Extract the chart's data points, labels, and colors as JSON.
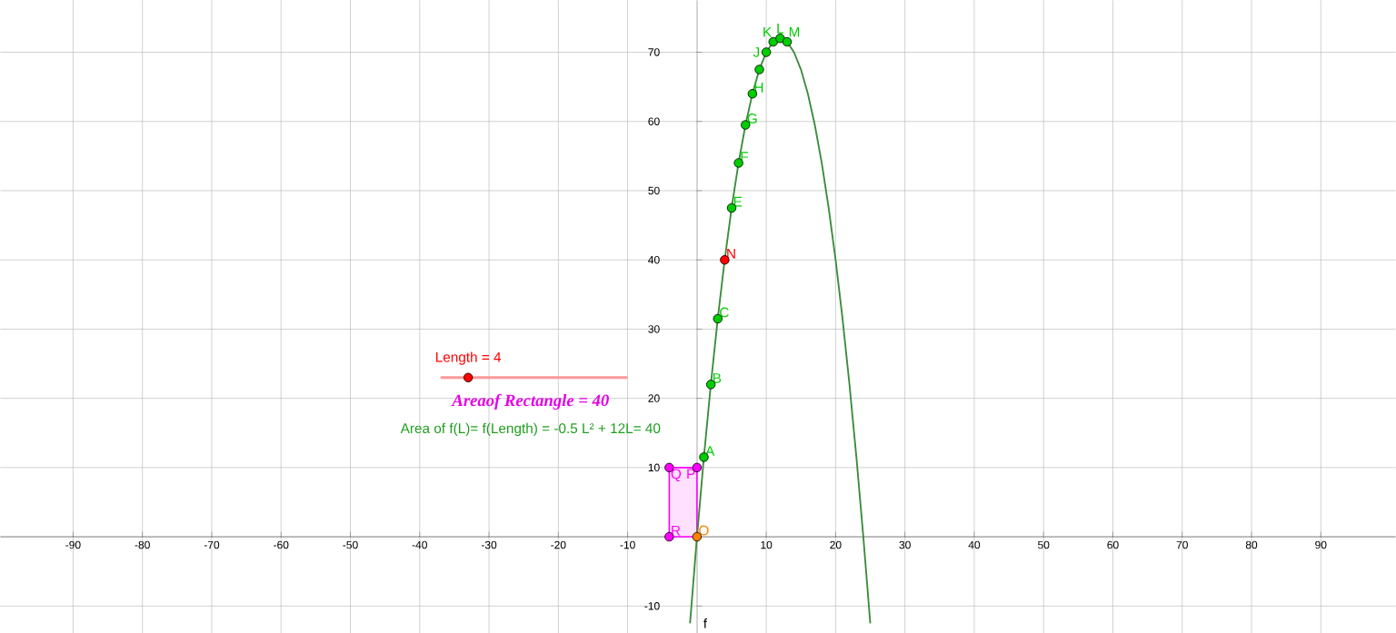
{
  "chart_data": {
    "type": "line",
    "xlim": [
      -100.5,
      100.8
    ],
    "ylim": [
      -13.9,
      77.5
    ],
    "xticks": [
      -90,
      -80,
      -70,
      -60,
      -50,
      -40,
      -30,
      -20,
      -10,
      10,
      20,
      30,
      40,
      50,
      60,
      70,
      80,
      90
    ],
    "yticks": [
      -10,
      10,
      20,
      30,
      40,
      50,
      60,
      70
    ],
    "grid": true,
    "series": [
      {
        "color": "#3d8b3d",
        "x": [
          -1,
          0,
          1,
          2,
          3,
          4,
          5,
          6,
          7,
          8,
          9,
          10,
          11,
          12,
          13,
          14,
          15,
          16,
          17,
          18,
          19,
          20,
          21,
          22,
          23,
          24,
          25
        ],
        "values": [
          -12.5,
          0,
          11.5,
          22,
          31.5,
          40,
          47.5,
          54,
          59.5,
          64,
          67.5,
          70,
          71.5,
          72,
          71.5,
          70,
          67.5,
          64,
          59.5,
          54,
          47.5,
          40,
          31.5,
          22,
          11.5,
          0,
          -12.5
        ]
      },
      {
        "type": "area",
        "color": "#ff00ff",
        "x": [
          -4,
          0
        ],
        "values": [
          10,
          10
        ]
      },
      {
        "type": "line",
        "color": "#ff9999",
        "x": [
          -37,
          -10
        ],
        "values": [
          23,
          23
        ]
      },
      {
        "type": "scatter",
        "color": "#ff0000",
        "x": [
          -33
        ],
        "values": [
          23
        ]
      },
      {
        "type": "scatter",
        "color": "#00cc00",
        "x": [
          1,
          2,
          3,
          5,
          6,
          7,
          8,
          9,
          10,
          11,
          12,
          13
        ],
        "values": [
          11.5,
          22,
          31.5,
          47.5,
          54,
          59.5,
          64,
          67.5,
          70,
          71.5,
          72,
          71.5
        ],
        "value_labels": [
          "A",
          "B",
          "C",
          "E",
          "F",
          "G",
          "H",
          null,
          "J",
          "K",
          "L",
          "M"
        ]
      },
      {
        "type": "scatter",
        "color": "#ff0000",
        "x": [
          4
        ],
        "values": [
          40
        ],
        "value_labels": [
          "N"
        ]
      },
      {
        "type": "scatter",
        "color": "#ff00ff",
        "x": [
          -4,
          -4,
          0
        ],
        "values": [
          0,
          10,
          10
        ],
        "value_labels": [
          "R",
          "Q",
          "P"
        ]
      },
      {
        "type": "scatter",
        "color": "#ff8000",
        "x": [
          0
        ],
        "values": [
          0
        ],
        "value_labels": [
          "O"
        ]
      }
    ],
    "annotations": [
      {
        "text": "Length = 4",
        "x": -33,
        "y": 23
      },
      "Areaof Rectangle = 40",
      "Area of f(L)= f(Length) = -0.5 L² + 12L= 40",
      "f"
    ]
  }
}
